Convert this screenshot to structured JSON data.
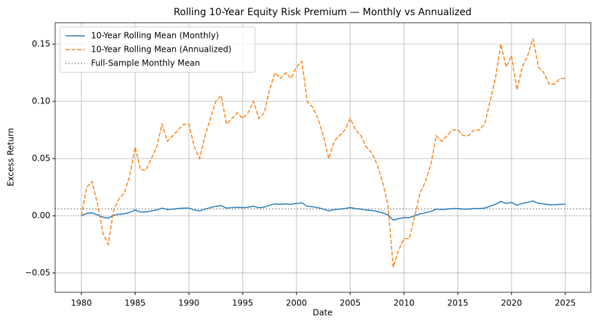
{
  "chart_data": {
    "type": "line",
    "title": "Rolling 10-Year Equity Risk Premium — Monthly vs Annualized",
    "x_label": "Date",
    "y_label": "Excess Return",
    "x": [
      1980,
      1980.5,
      1981,
      1981.5,
      1982,
      1982.5,
      1983,
      1983.5,
      1984,
      1984.5,
      1985,
      1985.5,
      1986,
      1986.5,
      1987,
      1987.5,
      1988,
      1988.5,
      1989,
      1989.5,
      1990,
      1990.5,
      1991,
      1991.5,
      1992,
      1992.5,
      1993,
      1993.5,
      1994,
      1994.5,
      1995,
      1995.5,
      1996,
      1996.5,
      1997,
      1997.5,
      1998,
      1998.5,
      1999,
      1999.5,
      2000,
      2000.5,
      2001,
      2001.5,
      2002,
      2002.5,
      2003,
      2003.5,
      2004,
      2004.5,
      2005,
      2005.5,
      2006,
      2006.5,
      2007,
      2007.5,
      2008,
      2008.5,
      2009,
      2009.5,
      2010,
      2010.5,
      2011,
      2011.5,
      2012,
      2012.5,
      2013,
      2013.5,
      2014,
      2014.5,
      2015,
      2015.5,
      2016,
      2016.5,
      2017,
      2017.5,
      2018,
      2018.5,
      2019,
      2019.5,
      2020,
      2020.5,
      2021,
      2021.5,
      2022,
      2022.5,
      2023,
      2023.5,
      2024,
      2024.5,
      2025
    ],
    "series": [
      {
        "name": "10-Year Rolling Mean (Monthly)",
        "color": "#1f77b4",
        "dash": "solid",
        "values": [
          0,
          0.0021,
          0.0025,
          0.0008,
          -0.0013,
          -0.0021,
          0.0004,
          0.0013,
          0.0017,
          0.0029,
          0.005,
          0.0033,
          0.0033,
          0.0042,
          0.005,
          0.0067,
          0.0054,
          0.0058,
          0.0063,
          0.0067,
          0.0067,
          0.005,
          0.0042,
          0.0058,
          0.0071,
          0.0083,
          0.0088,
          0.0067,
          0.0071,
          0.0075,
          0.0071,
          0.0075,
          0.0083,
          0.0071,
          0.0075,
          0.0092,
          0.0104,
          0.01,
          0.0104,
          0.01,
          0.0108,
          0.0113,
          0.0083,
          0.0079,
          0.0071,
          0.0058,
          0.0042,
          0.0054,
          0.0058,
          0.0063,
          0.0071,
          0.0063,
          0.0058,
          0.005,
          0.0046,
          0.0038,
          0.0025,
          0.0008,
          -0.0038,
          -0.0025,
          -0.0017,
          -0.0017,
          0,
          0.0017,
          0.0025,
          0.0038,
          0.0058,
          0.0054,
          0.0058,
          0.0063,
          0.0063,
          0.0058,
          0.0058,
          0.0063,
          0.0063,
          0.0067,
          0.0083,
          0.01,
          0.0125,
          0.0108,
          0.0117,
          0.0092,
          0.0108,
          0.0117,
          0.0129,
          0.0108,
          0.0104,
          0.0096,
          0.0096,
          0.01,
          0.01
        ]
      },
      {
        "name": "10-Year Rolling Mean (Annualized)",
        "color": "#ff7f0e",
        "dash": "dashed",
        "values": [
          0,
          0.025,
          0.03,
          0.01,
          -0.015,
          -0.025,
          0.005,
          0.015,
          0.02,
          0.035,
          0.06,
          0.04,
          0.04,
          0.05,
          0.06,
          0.08,
          0.065,
          0.07,
          0.075,
          0.08,
          0.08,
          0.06,
          0.05,
          0.07,
          0.085,
          0.1,
          0.105,
          0.08,
          0.085,
          0.09,
          0.085,
          0.09,
          0.1,
          0.085,
          0.09,
          0.11,
          0.125,
          0.12,
          0.125,
          0.12,
          0.13,
          0.135,
          0.1,
          0.095,
          0.085,
          0.07,
          0.05,
          0.065,
          0.07,
          0.075,
          0.085,
          0.075,
          0.07,
          0.06,
          0.055,
          0.045,
          0.03,
          0.01,
          -0.045,
          -0.03,
          -0.02,
          -0.02,
          0,
          0.02,
          0.03,
          0.045,
          0.07,
          0.065,
          0.07,
          0.075,
          0.075,
          0.07,
          0.07,
          0.075,
          0.075,
          0.08,
          0.1,
          0.12,
          0.15,
          0.13,
          0.14,
          0.11,
          0.13,
          0.14,
          0.155,
          0.13,
          0.125,
          0.115,
          0.115,
          0.12,
          0.12
        ]
      }
    ],
    "hline": {
      "name": "Full-Sample Monthly Mean",
      "value": 0.006,
      "color": "#808080",
      "dash": "dotted"
    },
    "xlim": [
      1977.56,
      2027.37
    ],
    "ylim": [
      -0.0669,
      0.1687
    ],
    "xticks": [
      1980,
      1985,
      1990,
      1995,
      2000,
      2005,
      2010,
      2015,
      2020,
      2025
    ],
    "yticks": [
      {
        "value": -0.05,
        "label": "−0.05"
      },
      {
        "value": 0,
        "label": "0.00"
      },
      {
        "value": 0.05,
        "label": "0.05"
      },
      {
        "value": 0.1,
        "label": "0.10"
      },
      {
        "value": 0.15,
        "label": "0.15"
      }
    ],
    "grid": true,
    "legend": "upper left"
  }
}
